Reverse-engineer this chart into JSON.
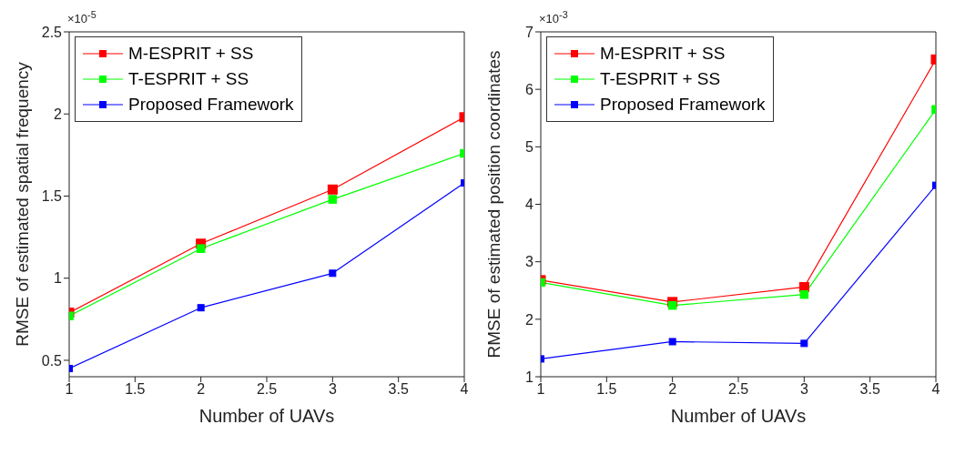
{
  "chart_data": [
    {
      "type": "line",
      "xlabel": "Number of UAVs",
      "ylabel": "RMSE of estimated spatial frequency",
      "annotations": [
        "×10$^{-5}$"
      ],
      "x": [
        1,
        2,
        3,
        4
      ],
      "xlim": [
        1,
        4
      ],
      "xticks": [
        1,
        1.5,
        2,
        2.5,
        3,
        3.5,
        4
      ],
      "ylim": [
        0.4,
        2.5
      ],
      "yticks": [
        0.5,
        1,
        1.5,
        2,
        2.5
      ],
      "grid": false,
      "legend": "top left",
      "marker": "square",
      "line_style": "solid",
      "series": [
        {
          "name": "M-ESPRIT + SS",
          "color": "#ff0000",
          "values": [
            0.79,
            1.21,
            1.54,
            1.98
          ]
        },
        {
          "name": "T-ESPRIT + SS",
          "color": "#00ff00",
          "values": [
            0.77,
            1.18,
            1.48,
            1.76
          ]
        },
        {
          "name": "Proposed Framework",
          "color": "#0000ff",
          "values": [
            0.45,
            0.82,
            1.03,
            1.58
          ]
        }
      ]
    },
    {
      "type": "line",
      "xlabel": "Number of UAVs",
      "ylabel": "RMSE of estimated position coordinates",
      "annotations": [
        "×10$^{-3}$"
      ],
      "x": [
        1,
        2,
        3,
        4
      ],
      "xlim": [
        1,
        4
      ],
      "xticks": [
        1,
        1.5,
        2,
        2.5,
        3,
        3.5,
        4
      ],
      "ylim": [
        1,
        7
      ],
      "yticks": [
        1,
        2,
        3,
        4,
        5,
        6,
        7
      ],
      "grid": false,
      "legend": "top left",
      "marker": "square",
      "line_style": "solid",
      "series": [
        {
          "name": "M-ESPRIT + SS",
          "color": "#ff0000",
          "values": [
            2.68,
            2.3,
            2.56,
            6.52
          ]
        },
        {
          "name": "T-ESPRIT + SS",
          "color": "#00ff00",
          "values": [
            2.64,
            2.24,
            2.43,
            5.65
          ]
        },
        {
          "name": "Proposed Framework",
          "color": "#0000ff",
          "values": [
            1.31,
            1.61,
            1.58,
            4.33
          ]
        }
      ]
    }
  ]
}
